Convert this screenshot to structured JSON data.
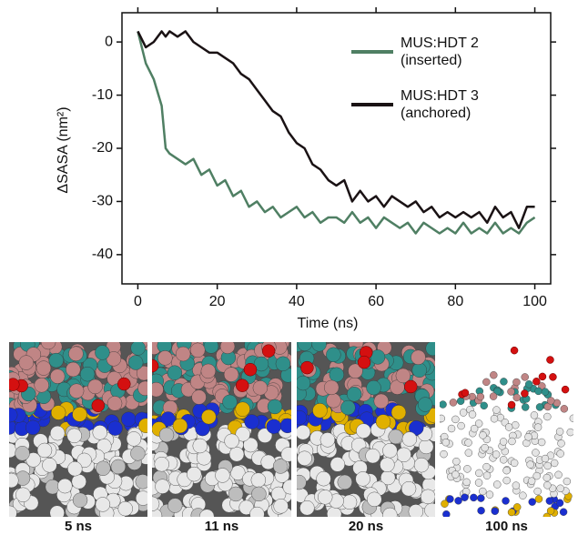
{
  "chart_data": {
    "type": "line",
    "xlabel": "Time (ns)",
    "ylabel": "ΔSASA (nm²)",
    "x": [
      0,
      2,
      4,
      6,
      7,
      8,
      10,
      12,
      14,
      16,
      18,
      20,
      22,
      24,
      26,
      28,
      30,
      32,
      34,
      36,
      38,
      40,
      42,
      44,
      46,
      48,
      50,
      52,
      54,
      56,
      58,
      60,
      62,
      64,
      66,
      68,
      70,
      72,
      74,
      76,
      78,
      80,
      82,
      84,
      86,
      88,
      90,
      92,
      94,
      96,
      98,
      100
    ],
    "series": [
      {
        "name": "MUS:HDT 2 (inserted)",
        "color": "#4f7f63",
        "values": [
          2,
          -4,
          -7,
          -12,
          -20,
          -21,
          -22,
          -23,
          -22,
          -25,
          -24,
          -27,
          -26,
          -29,
          -28,
          -31,
          -30,
          -32,
          -31,
          -33,
          -32,
          -31,
          -33,
          -32,
          -34,
          -33,
          -33,
          -34,
          -32,
          -34,
          -33,
          -35,
          -33,
          -34,
          -35,
          -34,
          -36,
          -34,
          -35,
          -36,
          -35,
          -36,
          -34,
          -36,
          -35,
          -36,
          -34,
          -36,
          -35,
          -36,
          -34,
          -33
        ]
      },
      {
        "name": "MUS:HDT 3 (anchored)",
        "color": "#1a1214",
        "values": [
          2,
          -1,
          0,
          2,
          1,
          2,
          1,
          2,
          0,
          -1,
          -2,
          -2,
          -3,
          -4,
          -6,
          -7,
          -9,
          -11,
          -13,
          -14,
          -17,
          -19,
          -20,
          -23,
          -24,
          -26,
          -27,
          -26,
          -30,
          -28,
          -30,
          -29,
          -31,
          -29,
          -30,
          -31,
          -30,
          -32,
          -31,
          -33,
          -32,
          -33,
          -32,
          -33,
          -32,
          -34,
          -31,
          -33,
          -32,
          -35,
          -31,
          -31
        ]
      }
    ],
    "xlim": [
      -4,
      104
    ],
    "ylim": [
      -45.5,
      5.5
    ],
    "xticks": [
      0,
      20,
      40,
      60,
      80,
      100
    ],
    "yticks": [
      0,
      -10,
      -20,
      -30,
      -40
    ]
  },
  "panels": [
    {
      "label": "5 ns"
    },
    {
      "label": "11 ns"
    },
    {
      "label": "20 ns"
    },
    {
      "label": "100 ns"
    }
  ]
}
